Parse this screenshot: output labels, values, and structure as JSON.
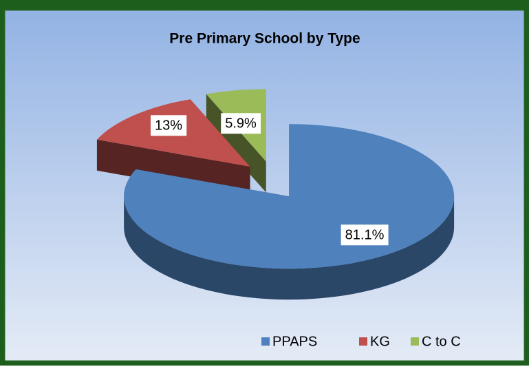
{
  "chart_data": {
    "type": "pie",
    "title": "Pre Primary School by Type",
    "categories": [
      "PPAPS",
      "KG",
      "C to C"
    ],
    "values": [
      81.1,
      13,
      5.9
    ],
    "value_labels": [
      "81.1%",
      "13%",
      "5.9%"
    ],
    "colors": [
      "#4f81bd",
      "#c0504d",
      "#9bbb59"
    ],
    "legend": "bottom-right"
  }
}
